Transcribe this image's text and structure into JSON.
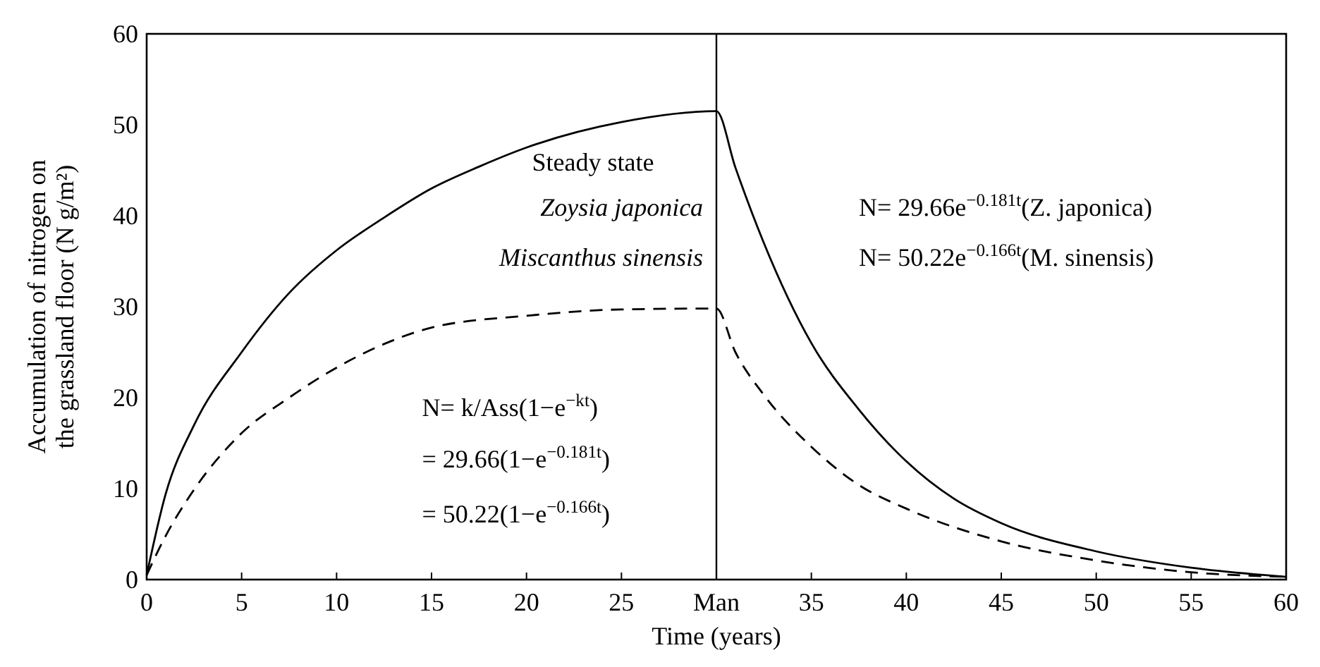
{
  "chart_data": {
    "type": "line",
    "xlabel": "Time (years)",
    "ylabel": "Accumulation of nitrogen on the grassland floor (N g/m²)",
    "xlim": [
      0,
      60
    ],
    "ylim": [
      0,
      60
    ],
    "xticks": [
      0,
      5,
      10,
      15,
      20,
      25,
      {
        "value": 30,
        "label": "Man"
      },
      35,
      40,
      45,
      50,
      55,
      60
    ],
    "yticks": [
      0,
      10,
      20,
      30,
      40,
      50,
      60
    ],
    "grid": false,
    "marker": "none",
    "series": [
      {
        "color": "#000000",
        "line_style": "solid",
        "x": [
          0,
          1,
          2.5,
          5,
          7.5,
          10,
          12.5,
          15,
          17.5,
          20,
          25,
          30,
          31,
          32.5,
          35,
          37.5,
          40,
          42.5,
          45,
          50,
          55,
          60
        ],
        "values": [
          0.5,
          9.4,
          17,
          25,
          31.5,
          36.2,
          39.8,
          43,
          45.4,
          47.5,
          50.3,
          51.5,
          45.3,
          37,
          26,
          18.7,
          13,
          8.9,
          6.2,
          3.1,
          1.3,
          0.3
        ]
      },
      {
        "color": "#000000",
        "line_style": "dashed",
        "x": [
          0,
          1,
          2.5,
          5,
          7.5,
          10,
          12.5,
          15,
          20,
          25,
          30,
          31,
          32.5,
          35,
          37.5,
          40,
          45,
          50,
          55,
          60
        ],
        "values": [
          0.5,
          4.8,
          9.9,
          16.1,
          20,
          23.3,
          25.9,
          27.7,
          29,
          29.7,
          29.8,
          25,
          20.3,
          14.6,
          10.4,
          7.8,
          4.2,
          2.1,
          0.8,
          0.3
        ]
      }
    ],
    "ref_lines": [
      {
        "axis": "x",
        "value": 30,
        "color": "#000000",
        "line_style": "solid"
      }
    ],
    "annotations": [
      "Steady state",
      "Zoysia japonica",
      "Miscanthus sinensis",
      "N= k/Ass(1−e$^{−kt}$)",
      "= 29.66(1−e$^{−0.181t}$)",
      "= 50.22(1−e$^{−0.166t}$)",
      "N= 29.66e$^{−0.181t}$(Z. japonica)",
      "N= 50.22e$^{−0.166t}$(M. sinensis)"
    ]
  }
}
